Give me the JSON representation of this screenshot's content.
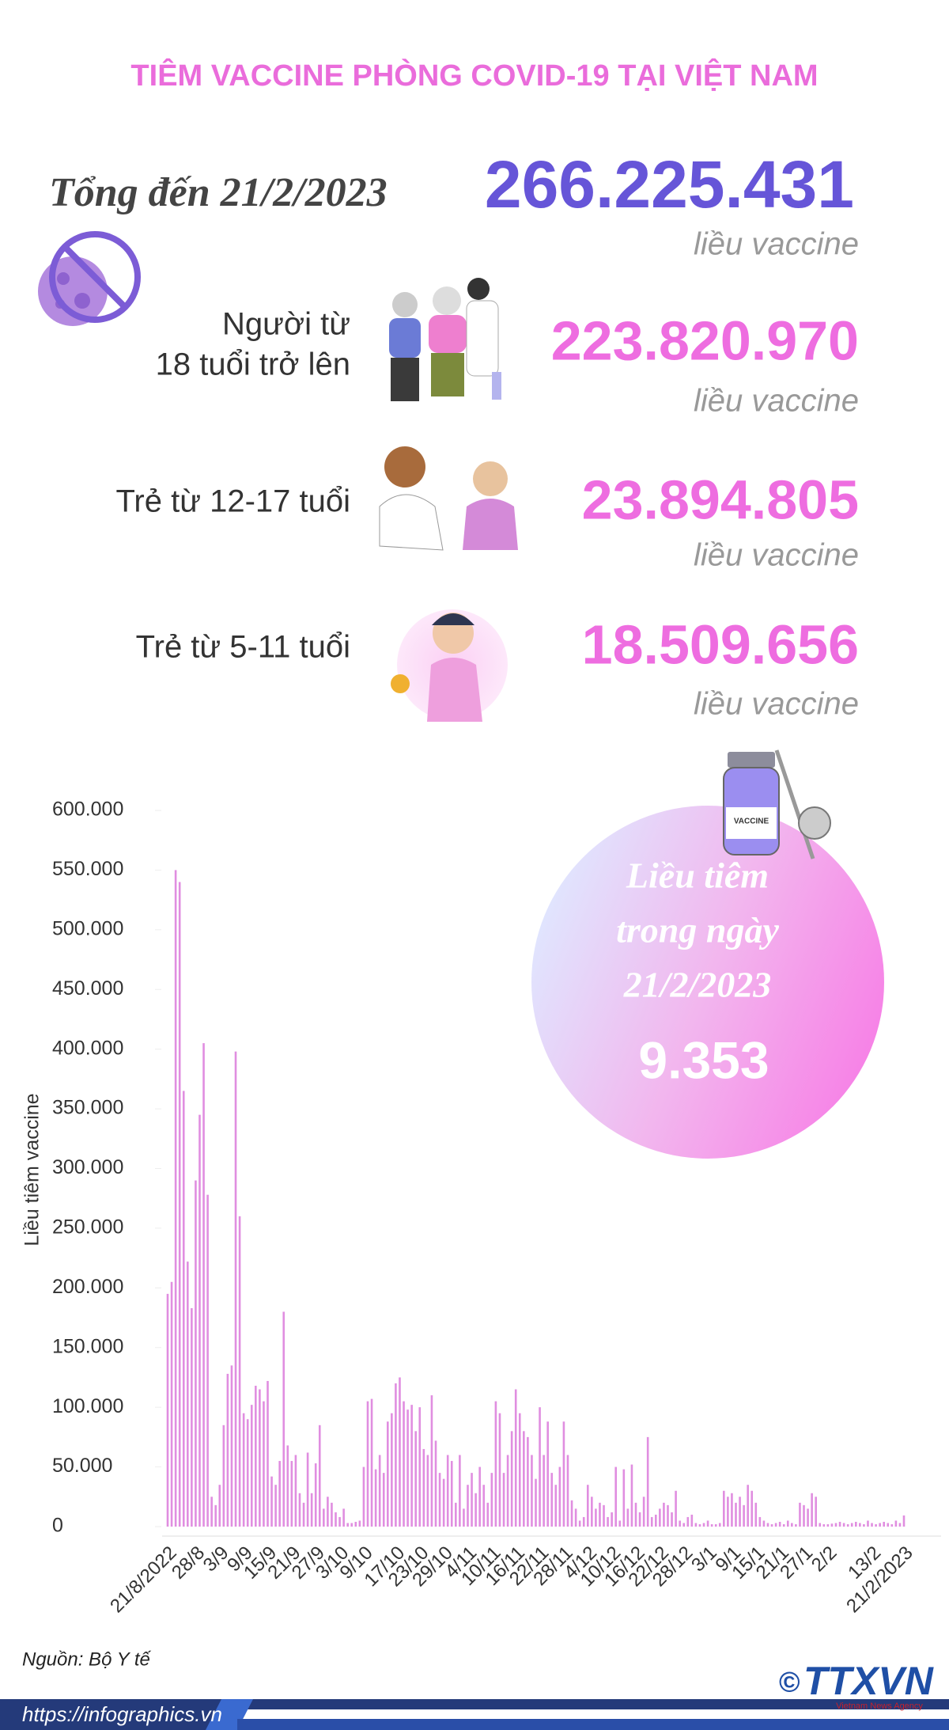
{
  "title": "TIÊM VACCINE PHÒNG COVID-19 TẠI VIỆT NAM",
  "total": {
    "label": "Tổng đến 21/2/2023",
    "value": "266.225.431",
    "unit": "liều vaccine"
  },
  "groups": [
    {
      "label_lines": [
        "Người từ",
        "18 tuổi trở lên"
      ],
      "value": "223.820.970",
      "unit": "liều vaccine"
    },
    {
      "label_lines": [
        "Trẻ từ 12-17 tuổi"
      ],
      "value": "23.894.805",
      "unit": "liều vaccine"
    },
    {
      "label_lines": [
        "Trẻ từ 5-11 tuổi"
      ],
      "value": "18.509.656",
      "unit": "liều vaccine"
    }
  ],
  "callout": {
    "lines": [
      "Liều tiêm",
      "trong ngày",
      "21/2/2023"
    ],
    "value": "9.353",
    "vial_label": "VACCINE"
  },
  "chart_data": {
    "type": "bar",
    "y_label": "Liều tiêm vaccine",
    "color": "#e08ee0",
    "ylim": [
      0,
      600000
    ],
    "yticks": [
      0,
      {
        "value": 50000,
        "label": "50.000"
      },
      {
        "value": 100000,
        "label": "100.000"
      },
      {
        "value": 150000,
        "label": "150.000"
      },
      {
        "value": 200000,
        "label": "200.000"
      },
      {
        "value": 250000,
        "label": "250.000"
      },
      {
        "value": 300000,
        "label": "300.000"
      },
      {
        "value": 350000,
        "label": "350.000"
      },
      {
        "value": 400000,
        "label": "400.000"
      },
      {
        "value": 450000,
        "label": "450.000"
      },
      {
        "value": 500000,
        "label": "500.000"
      },
      {
        "value": 550000,
        "label": "550.000"
      },
      {
        "value": 600000,
        "label": "600.000"
      }
    ],
    "categories": [
      "21/8/2022",
      null,
      null,
      null,
      null,
      null,
      null,
      "28/8",
      null,
      null,
      null,
      null,
      null,
      "3/9",
      null,
      null,
      null,
      null,
      null,
      "9/9",
      null,
      null,
      null,
      null,
      null,
      "15/9",
      null,
      null,
      null,
      null,
      null,
      "21/9",
      null,
      null,
      null,
      null,
      null,
      "27/9",
      null,
      null,
      null,
      null,
      null,
      "3/10",
      null,
      null,
      null,
      null,
      null,
      "9/10",
      null,
      null,
      null,
      null,
      null,
      null,
      null,
      "17/10",
      null,
      null,
      null,
      null,
      null,
      "23/10",
      null,
      null,
      null,
      null,
      null,
      "29/10",
      null,
      null,
      null,
      null,
      null,
      "4/11",
      null,
      null,
      null,
      null,
      null,
      "10/11",
      null,
      null,
      null,
      null,
      null,
      "16/11",
      null,
      null,
      null,
      null,
      null,
      "22/11",
      null,
      null,
      null,
      null,
      null,
      "28/11",
      null,
      null,
      null,
      null,
      null,
      "4/12",
      null,
      null,
      null,
      null,
      null,
      "10/12",
      null,
      null,
      null,
      null,
      null,
      "16/12",
      null,
      null,
      null,
      null,
      null,
      "22/12",
      null,
      null,
      null,
      null,
      null,
      "28/12",
      null,
      null,
      null,
      null,
      null,
      "3/1",
      null,
      null,
      null,
      null,
      null,
      "9/1",
      null,
      null,
      null,
      null,
      null,
      "15/1",
      null,
      null,
      null,
      null,
      null,
      "21/1",
      null,
      null,
      null,
      null,
      null,
      "27/1",
      null,
      null,
      null,
      null,
      null,
      "2/2",
      null,
      null,
      null,
      null,
      null,
      null,
      null,
      null,
      null,
      null,
      "13/2",
      null,
      null,
      null,
      null,
      null,
      null,
      null,
      "21/2/2023"
    ],
    "values": [
      195000,
      205000,
      550000,
      540000,
      365000,
      222000,
      183000,
      290000,
      345000,
      405000,
      278000,
      25000,
      18000,
      35000,
      85000,
      128000,
      135000,
      398000,
      260000,
      95000,
      90000,
      102000,
      118000,
      115000,
      105000,
      122000,
      42000,
      35000,
      55000,
      180000,
      68000,
      55000,
      60000,
      28000,
      20000,
      62000,
      28000,
      53000,
      85000,
      15000,
      25000,
      20000,
      12000,
      8000,
      15000,
      3000,
      3000,
      4000,
      5000,
      50000,
      105000,
      107000,
      48000,
      60000,
      45000,
      88000,
      95000,
      120000,
      125000,
      105000,
      98000,
      102000,
      80000,
      100000,
      65000,
      60000,
      110000,
      72000,
      45000,
      40000,
      60000,
      55000,
      20000,
      60000,
      15000,
      35000,
      45000,
      28000,
      50000,
      35000,
      20000,
      45000,
      105000,
      95000,
      45000,
      60000,
      80000,
      115000,
      95000,
      80000,
      75000,
      60000,
      40000,
      100000,
      60000,
      88000,
      45000,
      35000,
      50000,
      88000,
      60000,
      22000,
      15000,
      5000,
      8000,
      35000,
      25000,
      15000,
      20000,
      18000,
      8000,
      12000,
      50000,
      5000,
      48000,
      15000,
      52000,
      20000,
      12000,
      25000,
      75000,
      8000,
      10000,
      15000,
      20000,
      18000,
      12000,
      30000,
      5000,
      3000,
      8000,
      10000,
      3000,
      2000,
      3000,
      5000,
      2000,
      2000,
      3000,
      30000,
      25000,
      28000,
      20000,
      25000,
      18000,
      35000,
      30000,
      20000,
      8000,
      5000,
      3000,
      2000,
      3000,
      4000,
      2000,
      5000,
      3000,
      2000,
      20000,
      18000,
      15000,
      28000,
      25000,
      3000,
      2000,
      2000,
      2500,
      3000,
      4000,
      3000,
      2000,
      3000,
      4000,
      3000,
      2000,
      5000,
      3000,
      2000,
      3000,
      4000,
      3000,
      2000,
      5000,
      3000,
      9353
    ]
  },
  "source": "Nguồn: Bộ Y tế",
  "url": "https://infographics.vn",
  "logo": {
    "mark": "©",
    "name": "TTXVN",
    "tagline": "Vietnam News Agency"
  }
}
